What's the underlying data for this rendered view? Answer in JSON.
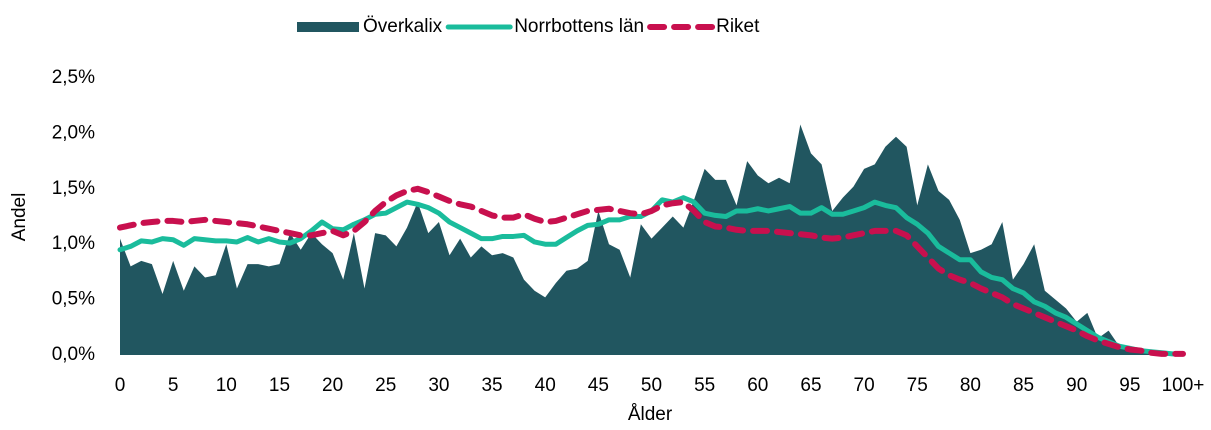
{
  "chart_data": {
    "type": "area",
    "xlabel": "Ålder",
    "ylabel": "Andel",
    "categories": [
      "0",
      null,
      null,
      null,
      null,
      "5",
      null,
      null,
      null,
      null,
      "10",
      null,
      null,
      null,
      null,
      "15",
      null,
      null,
      null,
      null,
      "20",
      null,
      null,
      null,
      null,
      "25",
      null,
      null,
      null,
      null,
      "30",
      null,
      null,
      null,
      null,
      "35",
      null,
      null,
      null,
      null,
      "40",
      null,
      null,
      null,
      null,
      "45",
      null,
      null,
      null,
      null,
      "50",
      null,
      null,
      null,
      null,
      "55",
      null,
      null,
      null,
      null,
      "60",
      null,
      null,
      null,
      null,
      "65",
      null,
      null,
      null,
      null,
      "70",
      null,
      null,
      null,
      null,
      "75",
      null,
      null,
      null,
      null,
      "80",
      null,
      null,
      null,
      null,
      "85",
      null,
      null,
      null,
      null,
      "90",
      null,
      null,
      null,
      null,
      "95",
      null,
      null,
      null,
      null,
      "100+"
    ],
    "ylim": [
      0,
      2.5
    ],
    "yticks": [
      {
        "value": 0,
        "label": "0,0%"
      },
      {
        "value": 0.5,
        "label": "0,5%"
      },
      {
        "value": 1,
        "label": "1,0%"
      },
      {
        "value": 1.5,
        "label": "1,5%"
      },
      {
        "value": 2,
        "label": "2,0%"
      },
      {
        "value": 2.5,
        "label": "2,5%"
      }
    ],
    "legend": "top",
    "series": [
      {
        "name": "Överkalix",
        "color": "#215660",
        "type": "area",
        "dashed": false,
        "values": [
          1.05,
          0.8,
          0.85,
          0.82,
          0.55,
          0.85,
          0.58,
          0.8,
          0.7,
          0.72,
          1.0,
          0.6,
          0.82,
          0.82,
          0.8,
          0.82,
          1.1,
          0.95,
          1.1,
          1.0,
          0.92,
          0.68,
          1.1,
          0.6,
          1.1,
          1.08,
          0.98,
          1.15,
          1.38,
          1.1,
          1.2,
          0.9,
          1.05,
          0.88,
          0.98,
          0.9,
          0.92,
          0.88,
          0.68,
          0.58,
          0.52,
          0.65,
          0.76,
          0.78,
          0.85,
          1.3,
          1.0,
          0.95,
          0.7,
          1.18,
          1.05,
          1.15,
          1.25,
          1.15,
          1.4,
          1.68,
          1.58,
          1.58,
          1.35,
          1.75,
          1.62,
          1.55,
          1.6,
          1.55,
          2.08,
          1.82,
          1.72,
          1.3,
          1.42,
          1.52,
          1.68,
          1.72,
          1.88,
          1.97,
          1.88,
          1.35,
          1.72,
          1.48,
          1.4,
          1.22,
          0.92,
          0.95,
          1.0,
          1.2,
          0.68,
          0.82,
          1.0,
          0.58,
          0.5,
          0.42,
          0.3,
          0.38,
          0.15,
          0.22,
          0.08,
          0.05,
          0.04,
          0.03,
          0.02,
          0.01,
          0.01
        ]
      },
      {
        "name": "Norrbottens län",
        "color": "#1abc9c",
        "type": "line",
        "dashed": false,
        "values": [
          0.95,
          0.98,
          1.03,
          1.02,
          1.05,
          1.04,
          0.99,
          1.05,
          1.04,
          1.03,
          1.03,
          1.02,
          1.06,
          1.02,
          1.05,
          1.02,
          1.01,
          1.05,
          1.12,
          1.2,
          1.14,
          1.13,
          1.18,
          1.22,
          1.27,
          1.28,
          1.33,
          1.38,
          1.36,
          1.33,
          1.28,
          1.2,
          1.15,
          1.1,
          1.05,
          1.05,
          1.07,
          1.07,
          1.08,
          1.02,
          1.0,
          1.0,
          1.06,
          1.12,
          1.17,
          1.18,
          1.22,
          1.22,
          1.25,
          1.25,
          1.3,
          1.4,
          1.38,
          1.42,
          1.38,
          1.28,
          1.26,
          1.25,
          1.3,
          1.3,
          1.32,
          1.3,
          1.32,
          1.34,
          1.28,
          1.28,
          1.33,
          1.27,
          1.27,
          1.3,
          1.33,
          1.38,
          1.35,
          1.33,
          1.24,
          1.18,
          1.1,
          0.98,
          0.92,
          0.86,
          0.86,
          0.75,
          0.7,
          0.68,
          0.6,
          0.56,
          0.48,
          0.44,
          0.38,
          0.34,
          0.28,
          0.22,
          0.16,
          0.12,
          0.08,
          0.06,
          0.04,
          0.03,
          0.02,
          0.01,
          0.01
        ]
      },
      {
        "name": "Riket",
        "color": "#c8104e",
        "type": "line",
        "dashed": true,
        "values": [
          1.15,
          1.17,
          1.19,
          1.2,
          1.21,
          1.21,
          1.2,
          1.21,
          1.22,
          1.21,
          1.2,
          1.19,
          1.18,
          1.16,
          1.14,
          1.12,
          1.1,
          1.08,
          1.08,
          1.1,
          1.12,
          1.08,
          1.12,
          1.2,
          1.3,
          1.38,
          1.44,
          1.48,
          1.5,
          1.47,
          1.43,
          1.39,
          1.36,
          1.34,
          1.3,
          1.26,
          1.24,
          1.24,
          1.27,
          1.23,
          1.2,
          1.21,
          1.24,
          1.27,
          1.3,
          1.31,
          1.32,
          1.3,
          1.28,
          1.27,
          1.3,
          1.35,
          1.37,
          1.38,
          1.3,
          1.2,
          1.16,
          1.15,
          1.13,
          1.12,
          1.12,
          1.12,
          1.11,
          1.1,
          1.09,
          1.08,
          1.06,
          1.05,
          1.06,
          1.08,
          1.1,
          1.12,
          1.12,
          1.12,
          1.08,
          0.98,
          0.88,
          0.78,
          0.72,
          0.68,
          0.65,
          0.6,
          0.56,
          0.52,
          0.46,
          0.42,
          0.38,
          0.34,
          0.3,
          0.26,
          0.22,
          0.17,
          0.13,
          0.1,
          0.07,
          0.05,
          0.04,
          0.02,
          0.01,
          0.01,
          0.01
        ]
      }
    ]
  }
}
